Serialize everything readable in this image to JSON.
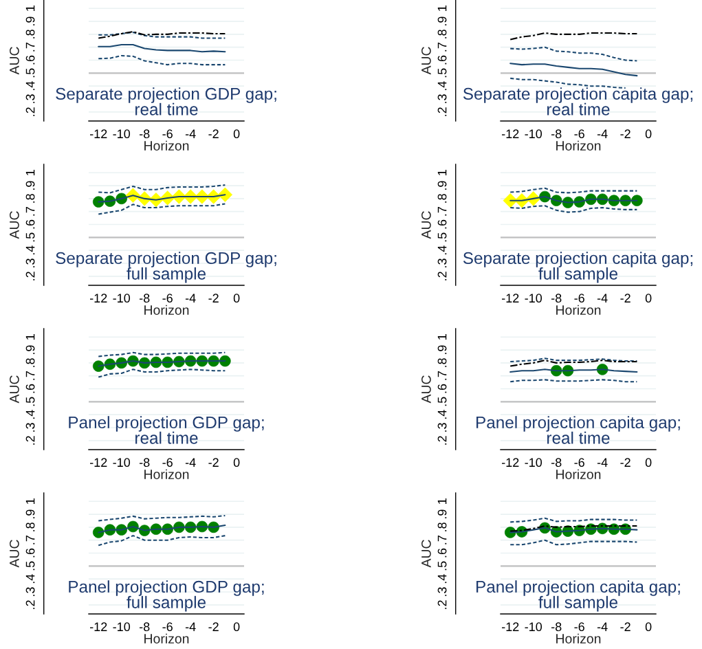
{
  "chart_data": [
    {
      "type": "line",
      "title": "Separate projection GDP gap;\nreal time",
      "xlabel": "Horizon",
      "ylabel": "AUC",
      "xlim": [
        -12.85,
        0.65
      ],
      "xticks": [
        -12,
        -10,
        -8,
        -6,
        -4,
        -2,
        0
      ],
      "ylim": [
        0.13,
        1.065
      ],
      "yticks": [
        {
          "value": 0.2,
          "label": ".2"
        },
        {
          "value": 0.3,
          "label": ".3"
        },
        {
          "value": 0.4,
          "label": ".4"
        },
        {
          "value": 0.5,
          "label": ".5"
        },
        {
          "value": 0.6,
          "label": ".6"
        },
        {
          "value": 0.7,
          "label": ".7"
        },
        {
          "value": 0.8,
          "label": ".8"
        },
        {
          "value": 0.9,
          "label": ".9"
        },
        1
      ],
      "grid": "y",
      "ref_lines": [
        {
          "axis": "y",
          "value": 0.5,
          "color": "#c0c0c0"
        }
      ],
      "series": [
        {
          "type": "line",
          "line_style": "dashed",
          "color": "#1a476f",
          "x": [
            -12,
            -11,
            -10,
            -9,
            -8,
            -7,
            -6,
            -5,
            -4,
            -3,
            -2,
            -1
          ],
          "values": [
            0.795,
            0.795,
            0.805,
            0.815,
            0.79,
            0.78,
            0.78,
            0.78,
            0.78,
            0.77,
            0.77,
            0.77
          ]
        },
        {
          "type": "line",
          "line_style": "solid",
          "color": "#1a476f",
          "x": [
            -12,
            -11,
            -10,
            -9,
            -8,
            -7,
            -6,
            -5,
            -4,
            -3,
            -2,
            -1
          ],
          "values": [
            0.705,
            0.705,
            0.72,
            0.72,
            0.69,
            0.68,
            0.675,
            0.675,
            0.675,
            0.665,
            0.67,
            0.665
          ]
        },
        {
          "type": "line",
          "line_style": "dashed",
          "color": "#1a476f",
          "x": [
            -12,
            -11,
            -10,
            -9,
            -8,
            -7,
            -6,
            -5,
            -4,
            -3,
            -2,
            -1
          ],
          "values": [
            0.612,
            0.615,
            0.635,
            0.63,
            0.595,
            0.58,
            0.565,
            0.575,
            0.575,
            0.565,
            0.565,
            0.565
          ]
        },
        {
          "type": "line",
          "line_style": "dashdot",
          "color": "#000000",
          "x": [
            -12,
            -11,
            -10,
            -9,
            -8,
            -7,
            -6,
            -5,
            -4,
            -3,
            -2,
            -1
          ],
          "values": [
            0.77,
            0.785,
            0.805,
            0.82,
            0.795,
            0.8,
            0.8,
            0.81,
            0.81,
            0.81,
            0.805,
            0.805
          ]
        }
      ]
    },
    {
      "type": "line",
      "title": "Separate projection capita gap;\nreal time",
      "xlabel": "Horizon",
      "ylabel": "AUC",
      "xlim": [
        -12.85,
        0.65
      ],
      "xticks": [
        -12,
        -10,
        -8,
        -6,
        -4,
        -2,
        0
      ],
      "ylim": [
        0.13,
        1.065
      ],
      "yticks": [
        {
          "value": 0.2,
          "label": ".2"
        },
        {
          "value": 0.3,
          "label": ".3"
        },
        {
          "value": 0.4,
          "label": ".4"
        },
        {
          "value": 0.5,
          "label": ".5"
        },
        {
          "value": 0.6,
          "label": ".6"
        },
        {
          "value": 0.7,
          "label": ".7"
        },
        {
          "value": 0.8,
          "label": ".8"
        },
        {
          "value": 0.9,
          "label": ".9"
        },
        1
      ],
      "grid": "y",
      "ref_lines": [
        {
          "axis": "y",
          "value": 0.5,
          "color": "#c0c0c0"
        }
      ],
      "series": [
        {
          "type": "line",
          "line_style": "dashed",
          "color": "#1a476f",
          "x": [
            -12,
            -11,
            -10,
            -9,
            -8,
            -7,
            -6,
            -5,
            -4,
            -3,
            -2,
            -1
          ],
          "values": [
            0.69,
            0.685,
            0.69,
            0.7,
            0.67,
            0.665,
            0.655,
            0.655,
            0.645,
            0.62,
            0.6,
            0.595
          ]
        },
        {
          "type": "line",
          "line_style": "solid",
          "color": "#1a476f",
          "x": [
            -12,
            -11,
            -10,
            -9,
            -8,
            -7,
            -6,
            -5,
            -4,
            -3,
            -2,
            -1
          ],
          "values": [
            0.575,
            0.565,
            0.57,
            0.57,
            0.555,
            0.545,
            0.535,
            0.535,
            0.53,
            0.51,
            0.49,
            0.48
          ]
        },
        {
          "type": "line",
          "line_style": "dashed",
          "color": "#1a476f",
          "x": [
            -12,
            -11,
            -10,
            -9,
            -8,
            -7,
            -6,
            -5,
            -4,
            -3,
            -2
          ],
          "values": [
            0.46,
            0.45,
            0.45,
            0.44,
            0.43,
            0.415,
            0.41,
            0.4,
            0.4,
            0.39,
            0.385
          ]
        },
        {
          "type": "line",
          "line_style": "dashdot",
          "color": "#000000",
          "x": [
            -12,
            -11,
            -10,
            -9,
            -8,
            -7,
            -6,
            -5,
            -4,
            -3,
            -2,
            -1
          ],
          "values": [
            0.76,
            0.78,
            0.79,
            0.81,
            0.8,
            0.8,
            0.8,
            0.81,
            0.81,
            0.81,
            0.805,
            0.805
          ]
        }
      ]
    },
    {
      "type": "line",
      "title": "Separate projection GDP gap;\nfull sample",
      "xlabel": "Horizon",
      "ylabel": "AUC",
      "xlim": [
        -12.85,
        0.65
      ],
      "xticks": [
        -12,
        -10,
        -8,
        -6,
        -4,
        -2,
        0
      ],
      "ylim": [
        0.13,
        1.065
      ],
      "yticks": [
        {
          "value": 0.2,
          "label": ".2"
        },
        {
          "value": 0.3,
          "label": ".3"
        },
        {
          "value": 0.4,
          "label": ".4"
        },
        {
          "value": 0.5,
          "label": ".5"
        },
        {
          "value": 0.6,
          "label": ".6"
        },
        {
          "value": 0.7,
          "label": ".7"
        },
        {
          "value": 0.8,
          "label": ".8"
        },
        {
          "value": 0.9,
          "label": ".9"
        },
        1
      ],
      "grid": "y",
      "ref_lines": [
        {
          "axis": "y",
          "value": 0.5,
          "color": "#c0c0c0"
        }
      ],
      "series": [
        {
          "type": "line",
          "line_style": "dashed",
          "color": "#1a476f",
          "x": [
            -12,
            -11,
            -10,
            -9,
            -8,
            -7,
            -6,
            -5,
            -4,
            -3,
            -2,
            -1
          ],
          "values": [
            0.85,
            0.845,
            0.87,
            0.895,
            0.87,
            0.87,
            0.885,
            0.89,
            0.89,
            0.89,
            0.895,
            0.905
          ]
        },
        {
          "type": "line",
          "line_style": "solid",
          "color": "#1a476f",
          "x": [
            -12,
            -11,
            -10,
            -9,
            -8,
            -7,
            -6,
            -5,
            -4,
            -3,
            -2,
            -1
          ],
          "values": [
            0.775,
            0.78,
            0.8,
            0.825,
            0.8,
            0.79,
            0.805,
            0.815,
            0.815,
            0.815,
            0.815,
            0.83
          ]
        },
        {
          "type": "line",
          "line_style": "dashed",
          "color": "#1a476f",
          "x": [
            -12,
            -11,
            -10,
            -9,
            -8,
            -7,
            -6,
            -5,
            -4,
            -3,
            -2,
            -1
          ],
          "values": [
            0.68,
            0.695,
            0.71,
            0.755,
            0.73,
            0.73,
            0.74,
            0.745,
            0.745,
            0.745,
            0.745,
            0.76
          ]
        },
        {
          "type": "scatter",
          "marker": "circle",
          "color": "#008000",
          "x": [
            -12,
            -11,
            -10
          ],
          "values": [
            0.775,
            0.78,
            0.8
          ]
        },
        {
          "type": "scatter",
          "marker": "diamond",
          "color": "#ffff00",
          "x": [
            -9,
            -8,
            -7,
            -6,
            -5,
            -4,
            -3,
            -2,
            -1
          ],
          "values": [
            0.825,
            0.8,
            0.79,
            0.805,
            0.815,
            0.815,
            0.815,
            0.815,
            0.83
          ]
        }
      ]
    },
    {
      "type": "line",
      "title": "Separate projection capita gap;\nfull sample",
      "xlabel": "Horizon",
      "ylabel": "AUC",
      "xlim": [
        -12.85,
        0.65
      ],
      "xticks": [
        -12,
        -10,
        -8,
        -6,
        -4,
        -2,
        0
      ],
      "ylim": [
        0.13,
        1.065
      ],
      "yticks": [
        {
          "value": 0.2,
          "label": ".2"
        },
        {
          "value": 0.3,
          "label": ".3"
        },
        {
          "value": 0.4,
          "label": ".4"
        },
        {
          "value": 0.5,
          "label": ".5"
        },
        {
          "value": 0.6,
          "label": ".6"
        },
        {
          "value": 0.7,
          "label": ".7"
        },
        {
          "value": 0.8,
          "label": ".8"
        },
        {
          "value": 0.9,
          "label": ".9"
        },
        1
      ],
      "grid": "y",
      "ref_lines": [
        {
          "axis": "y",
          "value": 0.5,
          "color": "#c0c0c0"
        }
      ],
      "series": [
        {
          "type": "line",
          "line_style": "dashed",
          "color": "#1a476f",
          "x": [
            -12,
            -11,
            -10,
            -9,
            -8,
            -7,
            -6,
            -5,
            -4,
            -3,
            -2,
            -1
          ],
          "values": [
            0.85,
            0.855,
            0.87,
            0.88,
            0.85,
            0.845,
            0.85,
            0.86,
            0.86,
            0.86,
            0.86,
            0.86
          ]
        },
        {
          "type": "line",
          "line_style": "solid",
          "color": "#1a476f",
          "x": [
            -12,
            -11,
            -10,
            -9,
            -8,
            -7,
            -6,
            -5,
            -4,
            -3,
            -2,
            -1
          ],
          "values": [
            0.785,
            0.785,
            0.8,
            0.815,
            0.785,
            0.77,
            0.775,
            0.795,
            0.795,
            0.785,
            0.785,
            0.785
          ]
        },
        {
          "type": "line",
          "line_style": "dashed",
          "color": "#1a476f",
          "x": [
            -12,
            -11,
            -10,
            -9,
            -8,
            -7,
            -6,
            -5,
            -4,
            -3,
            -2,
            -1
          ],
          "values": [
            0.73,
            0.725,
            0.74,
            0.745,
            0.71,
            0.695,
            0.7,
            0.725,
            0.73,
            0.72,
            0.715,
            0.715
          ]
        },
        {
          "type": "scatter",
          "marker": "diamond",
          "color": "#ffff00",
          "x": [
            -12,
            -11,
            -10
          ],
          "values": [
            0.785,
            0.785,
            0.8
          ]
        },
        {
          "type": "scatter",
          "marker": "circle",
          "color": "#008000",
          "x": [
            -9,
            -8,
            -7,
            -6,
            -5,
            -4,
            -3,
            -2,
            -1
          ],
          "values": [
            0.815,
            0.785,
            0.77,
            0.775,
            0.795,
            0.795,
            0.785,
            0.785,
            0.785
          ]
        }
      ]
    },
    {
      "type": "line",
      "title": "Panel projection GDP gap;\nreal time",
      "xlabel": "Horizon",
      "ylabel": "AUC",
      "xlim": [
        -12.85,
        0.65
      ],
      "xticks": [
        -12,
        -10,
        -8,
        -6,
        -4,
        -2,
        0
      ],
      "ylim": [
        0.13,
        1.065
      ],
      "yticks": [
        {
          "value": 0.2,
          "label": ".2"
        },
        {
          "value": 0.3,
          "label": ".3"
        },
        {
          "value": 0.4,
          "label": ".4"
        },
        {
          "value": 0.5,
          "label": ".5"
        },
        {
          "value": 0.6,
          "label": ".6"
        },
        {
          "value": 0.7,
          "label": ".7"
        },
        {
          "value": 0.8,
          "label": ".8"
        },
        {
          "value": 0.9,
          "label": ".9"
        },
        1
      ],
      "grid": "y",
      "ref_lines": [
        {
          "axis": "y",
          "value": 0.5,
          "color": "#c0c0c0"
        }
      ],
      "series": [
        {
          "type": "line",
          "line_style": "dashed",
          "color": "#1a476f",
          "x": [
            -12,
            -11,
            -10,
            -9,
            -8,
            -7,
            -6,
            -5,
            -4,
            -3,
            -2,
            -1
          ],
          "values": [
            0.85,
            0.86,
            0.865,
            0.88,
            0.865,
            0.865,
            0.87,
            0.875,
            0.875,
            0.875,
            0.875,
            0.88
          ]
        },
        {
          "type": "line",
          "line_style": "solid",
          "color": "#1a476f",
          "x": [
            -12,
            -11,
            -10,
            -9,
            -8,
            -7,
            -6,
            -5,
            -4,
            -3,
            -2,
            -1
          ],
          "values": [
            0.775,
            0.79,
            0.8,
            0.815,
            0.8,
            0.805,
            0.805,
            0.81,
            0.815,
            0.815,
            0.815,
            0.815
          ]
        },
        {
          "type": "line",
          "line_style": "dashed",
          "color": "#1a476f",
          "x": [
            -12,
            -11,
            -10,
            -9,
            -8,
            -7,
            -6,
            -5,
            -4,
            -3,
            -2,
            -1
          ],
          "values": [
            0.69,
            0.715,
            0.72,
            0.75,
            0.73,
            0.73,
            0.74,
            0.745,
            0.75,
            0.745,
            0.74,
            0.74
          ]
        },
        {
          "type": "scatter",
          "marker": "circle",
          "color": "#008000",
          "x": [
            -12,
            -11,
            -10,
            -9,
            -8,
            -7,
            -6,
            -5,
            -4,
            -3,
            -2,
            -1
          ],
          "values": [
            0.775,
            0.79,
            0.8,
            0.815,
            0.8,
            0.805,
            0.805,
            0.81,
            0.815,
            0.815,
            0.815,
            0.815
          ]
        }
      ]
    },
    {
      "type": "line",
      "title": "Panel projection capita gap;\nreal time",
      "xlabel": "Horizon",
      "ylabel": "AUC",
      "xlim": [
        -12.85,
        0.65
      ],
      "xticks": [
        -12,
        -10,
        -8,
        -6,
        -4,
        -2,
        0
      ],
      "ylim": [
        0.13,
        1.065
      ],
      "yticks": [
        {
          "value": 0.2,
          "label": ".2"
        },
        {
          "value": 0.3,
          "label": ".3"
        },
        {
          "value": 0.4,
          "label": ".4"
        },
        {
          "value": 0.5,
          "label": ".5"
        },
        {
          "value": 0.6,
          "label": ".6"
        },
        {
          "value": 0.7,
          "label": ".7"
        },
        {
          "value": 0.8,
          "label": ".8"
        },
        {
          "value": 0.9,
          "label": ".9"
        },
        1
      ],
      "grid": "y",
      "ref_lines": [
        {
          "axis": "y",
          "value": 0.5,
          "color": "#c0c0c0"
        }
      ],
      "series": [
        {
          "type": "line",
          "line_style": "dashed",
          "color": "#1a476f",
          "x": [
            -12,
            -11,
            -10,
            -9,
            -8,
            -7,
            -6,
            -5,
            -4,
            -3,
            -2,
            -1
          ],
          "values": [
            0.81,
            0.815,
            0.82,
            0.835,
            0.82,
            0.82,
            0.82,
            0.825,
            0.83,
            0.82,
            0.815,
            0.815
          ]
        },
        {
          "type": "line",
          "line_style": "solid",
          "color": "#1a476f",
          "x": [
            -12,
            -11,
            -10,
            -9,
            -8,
            -7,
            -6,
            -5,
            -4,
            -3,
            -2,
            -1
          ],
          "values": [
            0.73,
            0.74,
            0.74,
            0.75,
            0.74,
            0.74,
            0.745,
            0.745,
            0.75,
            0.74,
            0.735,
            0.73
          ]
        },
        {
          "type": "line",
          "line_style": "dashed",
          "color": "#1a476f",
          "x": [
            -12,
            -11,
            -10,
            -9,
            -8,
            -7,
            -6,
            -5,
            -4,
            -3,
            -2,
            -1
          ],
          "values": [
            0.655,
            0.665,
            0.665,
            0.67,
            0.66,
            0.66,
            0.66,
            0.665,
            0.67,
            0.665,
            0.655,
            0.655
          ]
        },
        {
          "type": "line",
          "line_style": "dashdot",
          "color": "#000000",
          "x": [
            -12,
            -11,
            -10,
            -9,
            -8,
            -7,
            -6,
            -5,
            -4,
            -3,
            -2,
            -1
          ],
          "values": [
            0.775,
            0.79,
            0.8,
            0.82,
            0.8,
            0.805,
            0.805,
            0.81,
            0.82,
            0.81,
            0.81,
            0.81
          ]
        },
        {
          "type": "scatter",
          "marker": "circle",
          "color": "#008000",
          "x": [
            -8,
            -7,
            -4
          ],
          "values": [
            0.74,
            0.74,
            0.75
          ]
        }
      ]
    },
    {
      "type": "line",
      "title": "Panel projection GDP gap;\nfull sample",
      "xlabel": "Horizon",
      "ylabel": "AUC",
      "xlim": [
        -12.85,
        0.65
      ],
      "xticks": [
        -12,
        -10,
        -8,
        -6,
        -4,
        -2,
        0
      ],
      "ylim": [
        0.13,
        1.065
      ],
      "yticks": [
        {
          "value": 0.2,
          "label": ".2"
        },
        {
          "value": 0.3,
          "label": ".3"
        },
        {
          "value": 0.4,
          "label": ".4"
        },
        {
          "value": 0.5,
          "label": ".5"
        },
        {
          "value": 0.6,
          "label": ".6"
        },
        {
          "value": 0.7,
          "label": ".7"
        },
        {
          "value": 0.8,
          "label": ".8"
        },
        {
          "value": 0.9,
          "label": ".9"
        },
        1
      ],
      "grid": "y",
      "ref_lines": [
        {
          "axis": "y",
          "value": 0.5,
          "color": "#c0c0c0"
        }
      ],
      "series": [
        {
          "type": "line",
          "line_style": "dashed",
          "color": "#1a476f",
          "x": [
            -12,
            -11,
            -10,
            -9,
            -8,
            -7,
            -6,
            -5,
            -4,
            -3,
            -2,
            -1
          ],
          "values": [
            0.85,
            0.86,
            0.87,
            0.885,
            0.865,
            0.87,
            0.875,
            0.875,
            0.88,
            0.885,
            0.88,
            0.89
          ]
        },
        {
          "type": "line",
          "line_style": "solid",
          "color": "#1a476f",
          "x": [
            -12,
            -11,
            -10,
            -9,
            -8,
            -7,
            -6,
            -5,
            -4,
            -3,
            -2,
            -1
          ],
          "values": [
            0.76,
            0.78,
            0.78,
            0.805,
            0.775,
            0.785,
            0.785,
            0.8,
            0.8,
            0.805,
            0.8,
            0.815
          ]
        },
        {
          "type": "line",
          "line_style": "dashed",
          "color": "#1a476f",
          "x": [
            -12,
            -11,
            -10,
            -9,
            -8,
            -7,
            -6,
            -5,
            -4,
            -3,
            -2,
            -1
          ],
          "values": [
            0.66,
            0.685,
            0.695,
            0.735,
            0.7,
            0.7,
            0.7,
            0.72,
            0.725,
            0.72,
            0.72,
            0.735
          ]
        },
        {
          "type": "scatter",
          "marker": "circle",
          "color": "#008000",
          "x": [
            -12,
            -11,
            -10,
            -9,
            -8,
            -7,
            -6,
            -5,
            -4,
            -3,
            -2
          ],
          "values": [
            0.76,
            0.78,
            0.78,
            0.805,
            0.775,
            0.785,
            0.785,
            0.8,
            0.8,
            0.805,
            0.8
          ]
        }
      ]
    },
    {
      "type": "line",
      "title": "Panel projection capita gap;\nfull sample",
      "xlabel": "Horizon",
      "ylabel": "AUC",
      "xlim": [
        -12.85,
        0.65
      ],
      "xticks": [
        -12,
        -10,
        -8,
        -6,
        -4,
        -2,
        0
      ],
      "ylim": [
        0.13,
        1.065
      ],
      "yticks": [
        {
          "value": 0.2,
          "label": ".2"
        },
        {
          "value": 0.3,
          "label": ".3"
        },
        {
          "value": 0.4,
          "label": ".4"
        },
        {
          "value": 0.5,
          "label": ".5"
        },
        {
          "value": 0.6,
          "label": ".6"
        },
        {
          "value": 0.7,
          "label": ".7"
        },
        {
          "value": 0.8,
          "label": ".8"
        },
        {
          "value": 0.9,
          "label": ".9"
        },
        1
      ],
      "grid": "y",
      "ref_lines": [
        {
          "axis": "y",
          "value": 0.5,
          "color": "#c0c0c0"
        }
      ],
      "series": [
        {
          "type": "line",
          "line_style": "dashed",
          "color": "#1a476f",
          "x": [
            -12,
            -11,
            -10,
            -9,
            -8,
            -7,
            -6,
            -5,
            -4,
            -3,
            -2,
            -1
          ],
          "values": [
            0.84,
            0.845,
            0.855,
            0.87,
            0.845,
            0.85,
            0.85,
            0.86,
            0.86,
            0.86,
            0.855,
            0.855
          ]
        },
        {
          "type": "line",
          "line_style": "solid",
          "color": "#1a476f",
          "x": [
            -12,
            -11,
            -10,
            -9,
            -8,
            -7,
            -6,
            -5,
            -4,
            -3,
            -2,
            -1
          ],
          "values": [
            0.76,
            0.765,
            0.78,
            0.795,
            0.765,
            0.77,
            0.775,
            0.785,
            0.79,
            0.785,
            0.785,
            0.78
          ]
        },
        {
          "type": "line",
          "line_style": "dashed",
          "color": "#1a476f",
          "x": [
            -12,
            -11,
            -10,
            -9,
            -8,
            -7,
            -6,
            -5,
            -4,
            -3,
            -2,
            -1
          ],
          "values": [
            0.665,
            0.665,
            0.68,
            0.7,
            0.665,
            0.67,
            0.68,
            0.69,
            0.69,
            0.69,
            0.69,
            0.685
          ]
        },
        {
          "type": "line",
          "line_style": "dashdot",
          "color": "#000000",
          "x": [
            -12,
            -11,
            -10,
            -9,
            -8,
            -7,
            -6,
            -5,
            -4,
            -3,
            -2,
            -1
          ],
          "values": [
            0.77,
            0.775,
            0.79,
            0.81,
            0.8,
            0.805,
            0.805,
            0.81,
            0.81,
            0.81,
            0.81,
            0.81
          ]
        },
        {
          "type": "scatter",
          "marker": "circle",
          "color": "#008000",
          "x": [
            -12,
            -11,
            -9,
            -8,
            -7,
            -6,
            -5,
            -4,
            -3,
            -2
          ],
          "values": [
            0.76,
            0.765,
            0.795,
            0.765,
            0.77,
            0.775,
            0.785,
            0.79,
            0.785,
            0.785
          ]
        }
      ]
    }
  ]
}
